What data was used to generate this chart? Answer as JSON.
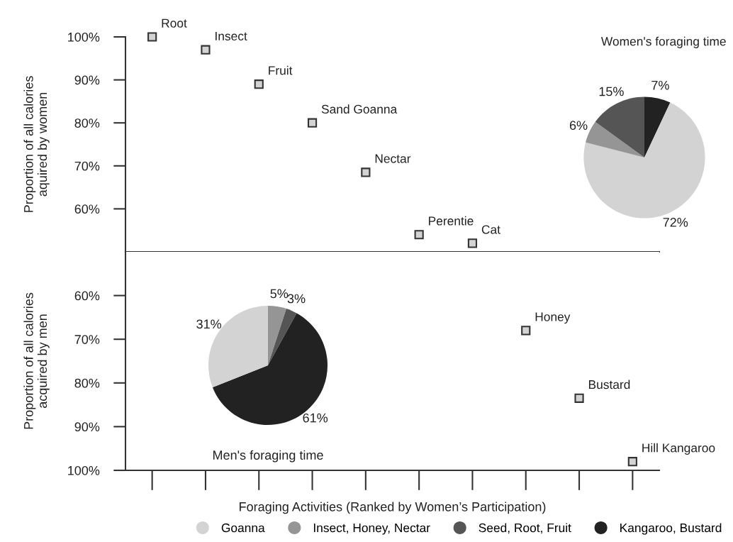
{
  "chart_data": [
    {
      "type": "scatter",
      "ylabel": "Proportion of all calories\naquired by women",
      "categories": [
        null,
        null,
        null,
        null,
        null,
        null,
        null,
        null,
        null,
        null
      ],
      "series": [
        {
          "color": "#d3d3d3",
          "values": [
            100,
            97,
            89,
            80,
            68.5,
            54,
            52,
            null,
            null,
            null
          ],
          "value_labels": [
            "Root",
            "Insect",
            "Fruit",
            "Sand Goanna",
            "Nectar",
            "Perentie",
            "Cat",
            null,
            null,
            null
          ]
        }
      ],
      "marker": "square",
      "ylim": [
        50,
        100
      ],
      "yticks": [
        {
          "value": 60,
          "label": "60%"
        },
        {
          "value": 70,
          "label": "70%"
        },
        {
          "value": 80,
          "label": "80%"
        },
        {
          "value": 90,
          "label": "90%"
        },
        {
          "value": 100,
          "label": "100%"
        }
      ],
      "tick_labels": "y",
      "grid": false
    },
    {
      "type": "scatter",
      "ylabel": "Proportion of all calories\nacquired by men",
      "xlabel": "Foraging Activities (Ranked by Women’s Participation)",
      "categories": [
        null,
        null,
        null,
        null,
        null,
        null,
        null,
        null,
        null,
        null
      ],
      "series": [
        {
          "color": "#d3d3d3",
          "values": [
            null,
            null,
            null,
            null,
            null,
            null,
            null,
            68,
            83.5,
            98
          ],
          "value_labels": [
            null,
            null,
            null,
            null,
            null,
            null,
            null,
            "Honey",
            "Bustard",
            "Hill Kangaroo"
          ]
        }
      ],
      "marker": "square",
      "ylim": [
        100,
        50
      ],
      "yticks": [
        {
          "value": 60,
          "label": "60%"
        },
        {
          "value": 70,
          "label": "70%"
        },
        {
          "value": 80,
          "label": "80%"
        },
        {
          "value": 90,
          "label": "90%"
        },
        {
          "value": 100,
          "label": "100%"
        }
      ],
      "tick_labels": "y",
      "grid": false
    },
    {
      "type": "pie",
      "title": "Women's foraging time",
      "categories": [
        "Kangaroo, Bustard",
        "Goanna",
        "Insect, Honey, Nectar",
        "Seed, Root, Fruit"
      ],
      "values": [
        7,
        72,
        6,
        15
      ],
      "value_labels": [
        "7%",
        "72%",
        "6%",
        "15%"
      ],
      "colors": [
        "#222222",
        "#d3d3d3",
        "#959595",
        "#555555"
      ],
      "legend": "bottom"
    },
    {
      "type": "pie",
      "title": "Men's foraging time",
      "categories": [
        null,
        null,
        null,
        null
      ],
      "values": [
        5,
        3,
        61,
        31
      ],
      "value_labels": [
        "5%",
        "3%",
        "61%",
        "31%"
      ],
      "colors": [
        "#959595",
        "#555555",
        "#222222",
        "#d3d3d3"
      ]
    }
  ]
}
